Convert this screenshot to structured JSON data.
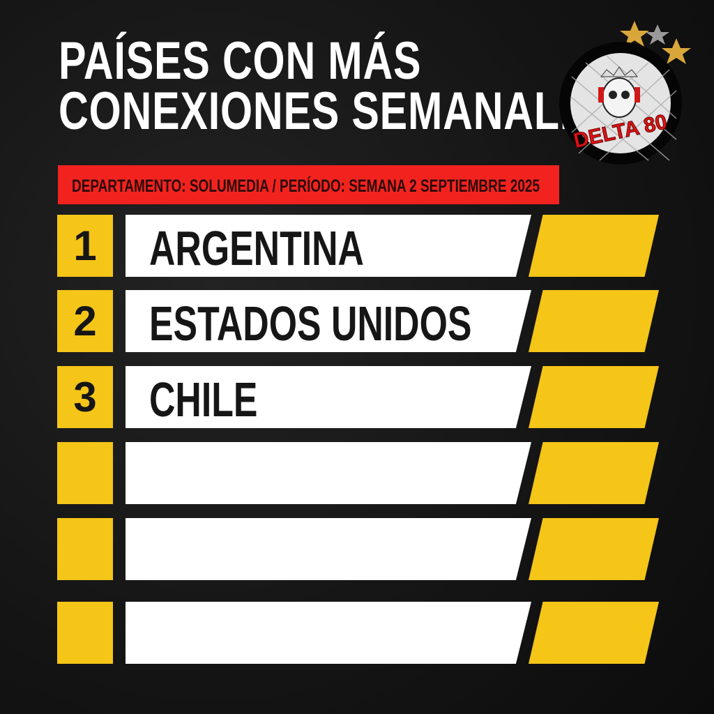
{
  "title": {
    "line1": "PAÍSES CON MÁS",
    "line2": "CONEXIONES SEMANALES"
  },
  "banner": "DEPARTAMENTO: SOLUMEDIA / PERÍODO: SEMANA 2 SEPTIEMBRE 2025",
  "logo": {
    "text": "DELTA 80",
    "icon": "skull-crown-headphones-logo"
  },
  "colors": {
    "accent_yellow": "#f5c518",
    "banner_red": "#f2231f",
    "background": "#141414"
  },
  "rows": [
    {
      "rank": "1",
      "country": "ARGENTINA"
    },
    {
      "rank": "2",
      "country": "ESTADOS UNIDOS"
    },
    {
      "rank": "3",
      "country": "CHILE"
    },
    {
      "rank": "",
      "country": ""
    },
    {
      "rank": "",
      "country": ""
    },
    {
      "rank": "",
      "country": ""
    }
  ]
}
